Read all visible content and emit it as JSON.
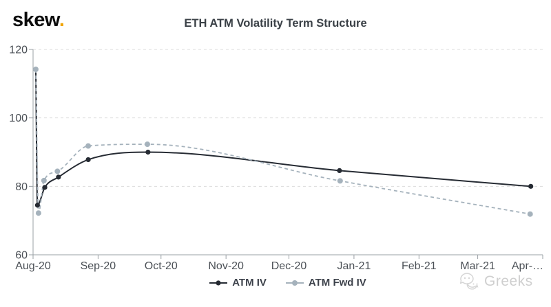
{
  "brand": {
    "name": "skew",
    "dot": ".",
    "dot_color": "#f0a400",
    "text_color": "#0b0b0b"
  },
  "header": {
    "title": "ETH ATM Volatility Term Structure"
  },
  "legend": {
    "items": [
      {
        "label": "ATM IV",
        "color": "#262b33",
        "dash": false
      },
      {
        "label": "ATM Fwd IV",
        "color": "#a5b2bc",
        "dash": true
      }
    ]
  },
  "watermark": {
    "text": "Greeks",
    "icon": "wechat-icon",
    "color": "#cfcfcf"
  },
  "chart_data": {
    "type": "line",
    "title": "ETH ATM Volatility Term Structure",
    "xlabel": "",
    "ylabel": "",
    "grid": "horizontal-dashed",
    "legend_position": "bottom-center",
    "x_axis": {
      "note": "time axis, days measured from Aug-1-2020; last tick label truncated on screen",
      "ticks": [
        {
          "label": "Aug-20",
          "day": 0
        },
        {
          "label": "Sep-20",
          "day": 31
        },
        {
          "label": "Oct-20",
          "day": 61
        },
        {
          "label": "Nov-20",
          "day": 92
        },
        {
          "label": "Dec-20",
          "day": 122
        },
        {
          "label": "Jan-21",
          "day": 153
        },
        {
          "label": "Feb-21",
          "day": 184
        },
        {
          "label": "Mar-21",
          "day": 212
        },
        {
          "label": "Apr-…",
          "day": 243
        }
      ],
      "range_days": [
        0,
        243
      ]
    },
    "y_axis": {
      "ticks": [
        120,
        100,
        80,
        60
      ],
      "ylim": [
        60,
        120
      ]
    },
    "series": [
      {
        "name": "ATM IV",
        "style": "solid",
        "color": "#262b33",
        "marker_radius": 3.6,
        "x_days": [
          1.3,
          2.1,
          5.6,
          12.1,
          26.3,
          54.8,
          146.1,
          237.3
        ],
        "values": [
          114.2,
          74.5,
          79.7,
          82.7,
          87.8,
          90.0,
          84.6,
          80.0
        ]
      },
      {
        "name": "ATM Fwd IV",
        "style": "dashed",
        "color": "#a5b2bc",
        "marker_radius": 4.0,
        "x_days": [
          1.3,
          2.6,
          5.2,
          11.6,
          26.3,
          54.5,
          146.4,
          237.0
        ],
        "values": [
          114.2,
          72.2,
          81.7,
          84.4,
          91.8,
          92.3,
          81.6,
          71.9
        ]
      }
    ],
    "colors": {
      "grid": "#dbdbdb",
      "axis": "#9aa0a5",
      "tick_label": "#4b5056"
    }
  }
}
